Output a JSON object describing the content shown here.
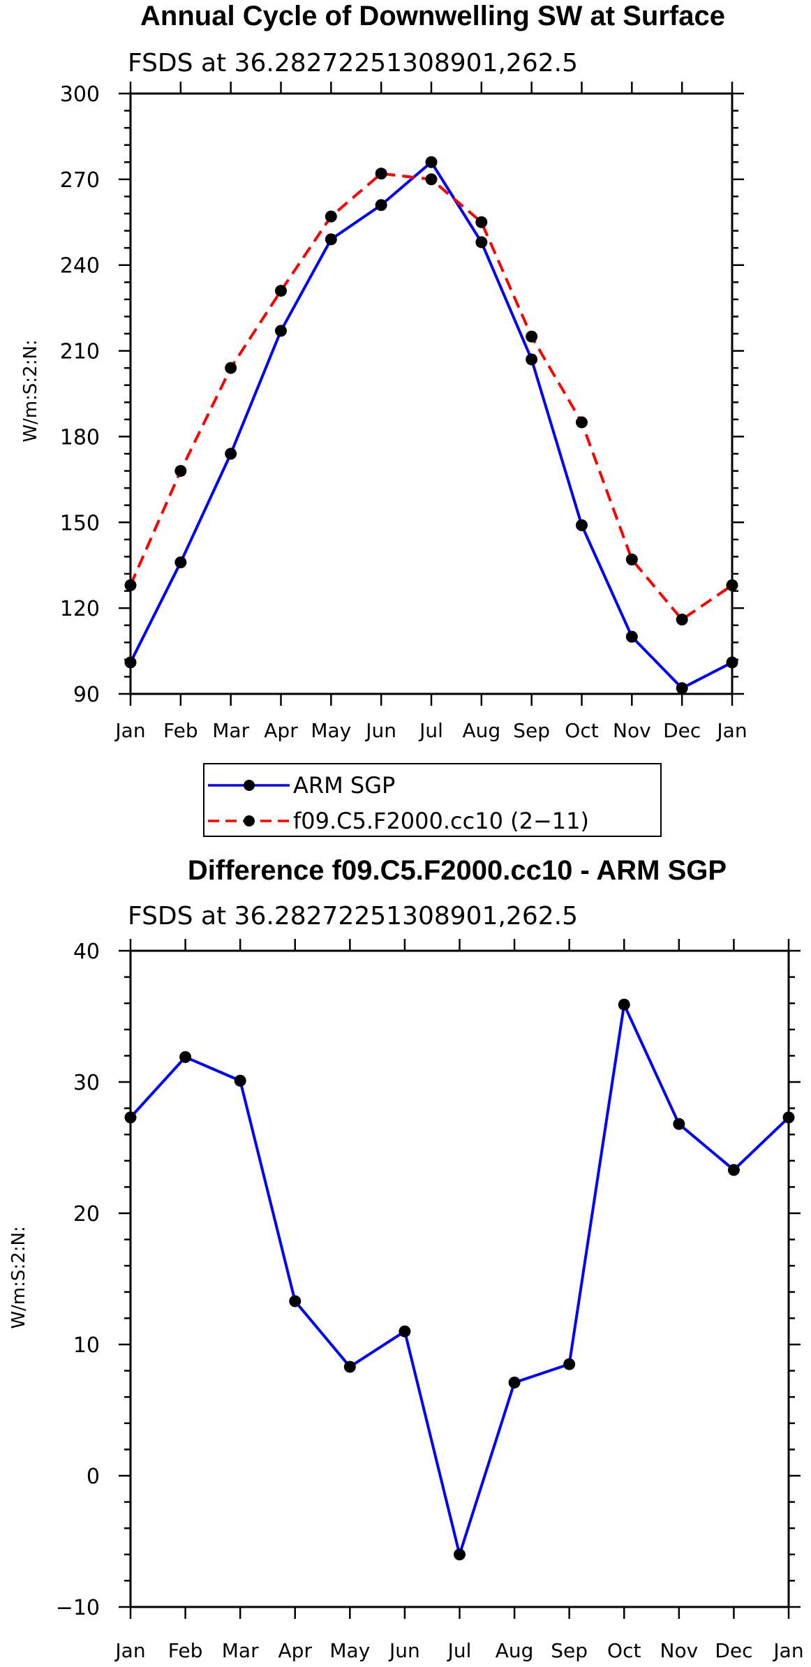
{
  "chart_data": [
    {
      "type": "line",
      "title": "Annual Cycle of Downwelling SW at Surface",
      "subtitle": "FSDS at 36.28272251308901,262.5",
      "xlabel": "",
      "ylabel": "W/m:S:2:N:",
      "categories": [
        "Jan",
        "Feb",
        "Mar",
        "Apr",
        "May",
        "Jun",
        "Jul",
        "Aug",
        "Sep",
        "Oct",
        "Nov",
        "Dec",
        "Jan"
      ],
      "ylim": [
        90,
        300
      ],
      "yticks": [
        90,
        120,
        150,
        180,
        210,
        240,
        270,
        300
      ],
      "ytick_labels": [
        "90",
        "120",
        "150",
        "180",
        "210",
        "240",
        "270",
        "300"
      ],
      "series": [
        {
          "name": "ARM SGP",
          "color": "#0000ff",
          "dash": "solid",
          "values": [
            101,
            136,
            174,
            217,
            249,
            261,
            276,
            248,
            207,
            149,
            110,
            92,
            101
          ]
        },
        {
          "name": "f09.C5.F2000.cc10 (2−11)",
          "color": "#ff0000",
          "dash": "dashed",
          "values": [
            128,
            168,
            204,
            231,
            257,
            272,
            270,
            255,
            215,
            185,
            137,
            116,
            128
          ]
        }
      ],
      "legend": {
        "position": "below",
        "entries": [
          "ARM SGP",
          "f09.C5.F2000.cc10 (2−11)"
        ]
      }
    },
    {
      "type": "line",
      "title": "Difference f09.C5.F2000.cc10 - ARM SGP",
      "subtitle": "FSDS at 36.28272251308901,262.5",
      "xlabel": "",
      "ylabel": "W/m:S:2:N:",
      "categories": [
        "Jan",
        "Feb",
        "Mar",
        "Apr",
        "May",
        "Jun",
        "Jul",
        "Aug",
        "Sep",
        "Oct",
        "Nov",
        "Dec",
        "Jan"
      ],
      "ylim": [
        -10,
        40
      ],
      "yticks": [
        -10,
        0,
        10,
        20,
        30,
        40
      ],
      "ytick_labels": [
        "−10",
        "0",
        "10",
        "20",
        "30",
        "40"
      ],
      "series": [
        {
          "name": "Difference",
          "color": "#0000ff",
          "dash": "solid",
          "values": [
            27.3,
            31.9,
            30.1,
            13.3,
            8.3,
            11.0,
            -6.0,
            7.1,
            8.5,
            35.9,
            26.8,
            23.3,
            27.3
          ]
        }
      ]
    }
  ]
}
